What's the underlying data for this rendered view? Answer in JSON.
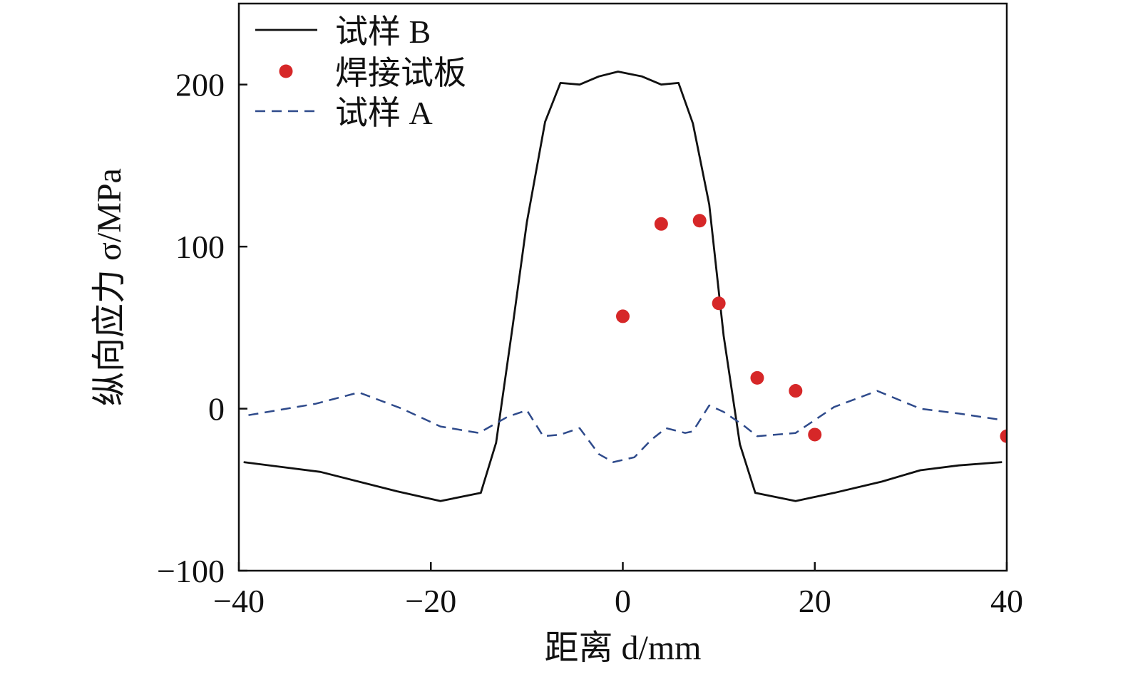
{
  "chart_data": {
    "type": "line",
    "xlabel": "距离 d/mm",
    "ylabel": "纵向应力 σ/MPa",
    "xlim": [
      -40,
      40
    ],
    "ylim": [
      -100,
      250
    ],
    "xticks": [
      -40,
      -20,
      0,
      20,
      40
    ],
    "yticks": [
      -100,
      0,
      100,
      200
    ],
    "xtick_labels": [
      "−40",
      "−20",
      "0",
      "20",
      "40"
    ],
    "ytick_labels": [
      "−100",
      "0",
      "100",
      "200"
    ],
    "grid": false,
    "legend_position": "top-left",
    "series": [
      {
        "name": "试样 B",
        "kind": "line",
        "style": "solid",
        "color": "#111111",
        "x": [
          -39.5,
          -31.5,
          -23.5,
          -19,
          -14.8,
          -13.2,
          -11.5,
          -10,
          -8.1,
          -6.5,
          -4.5,
          -2.5,
          -0.5,
          2,
          4,
          5.8,
          7.3,
          9,
          10.5,
          12.2,
          13.8,
          18,
          22,
          27,
          31,
          35,
          39.5
        ],
        "y": [
          -33,
          -39,
          -51,
          -57,
          -52,
          -21,
          50,
          115,
          177,
          201,
          200,
          205,
          208,
          205,
          200,
          201,
          176,
          126,
          45,
          -22,
          -52,
          -57,
          -52,
          -45,
          -38,
          -35,
          -33
        ]
      },
      {
        "name": "焊接试板",
        "kind": "scatter",
        "color": "#d62728",
        "x": [
          0,
          4,
          8,
          10,
          14,
          18,
          20,
          40
        ],
        "y": [
          57,
          114,
          116,
          65,
          19,
          11,
          -16,
          -17
        ]
      },
      {
        "name": "试样 A",
        "kind": "line",
        "style": "dashed",
        "color": "#2e4a8b",
        "x": [
          -39,
          -32,
          -27.5,
          -23,
          -19,
          -15,
          -12,
          -10,
          -8.3,
          -6.5,
          -4.5,
          -2.5,
          -1,
          1.2,
          3,
          4.5,
          6.5,
          7.3,
          9,
          10.5,
          12.5,
          14,
          18,
          20,
          22,
          26.5,
          31,
          35,
          39.5
        ],
        "y": [
          -4,
          3,
          10,
          0,
          -11,
          -15,
          -5,
          -1,
          -17,
          -16,
          -12,
          -28,
          -33,
          -30,
          -19,
          -12,
          -15,
          -14,
          2,
          -2,
          -10,
          -17,
          -15,
          -7,
          1,
          11,
          0,
          -3,
          -7
        ]
      }
    ]
  }
}
